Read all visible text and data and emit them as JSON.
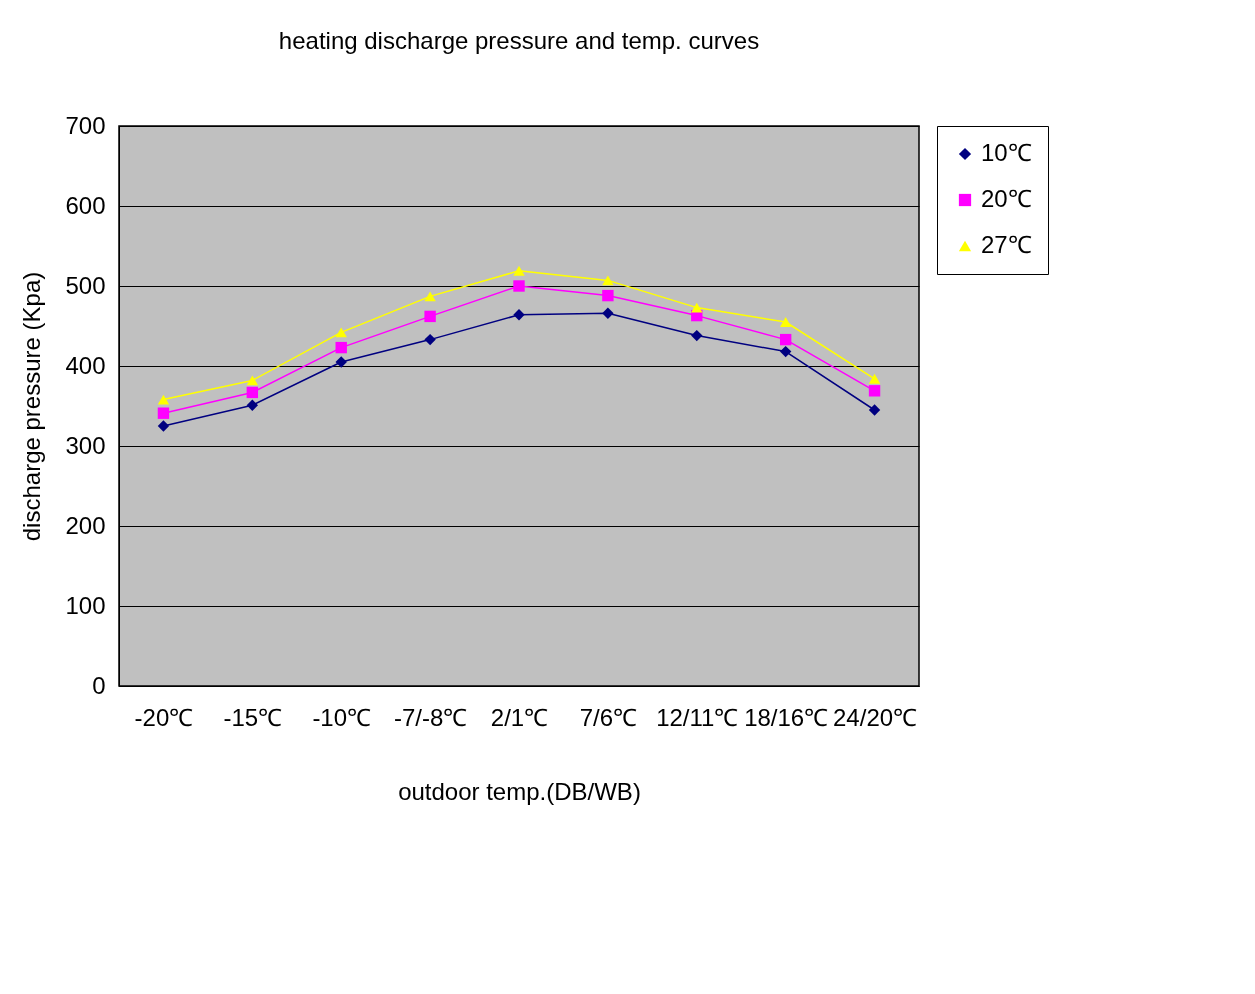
{
  "chart_data": {
    "type": "line",
    "title": "heating discharge pressure and temp. curves",
    "xlabel": "outdoor temp.(DB/WB)",
    "ylabel": "discharge pressure (Kpa)",
    "categories": [
      "-20℃",
      "-15℃",
      "-10℃",
      "-7/-8℃",
      "2/1℃",
      "7/6℃",
      "12/11℃",
      "18/16℃",
      "24/20℃"
    ],
    "series": [
      {
        "name": "10℃",
        "color": "#000080",
        "marker": "diamond",
        "values": [
          325,
          351,
          405,
          433,
          464,
          466,
          438,
          418,
          345
        ]
      },
      {
        "name": "20℃",
        "color": "#ff00ff",
        "marker": "square",
        "values": [
          341,
          367,
          423,
          462,
          500,
          488,
          463,
          433,
          369
        ]
      },
      {
        "name": "27℃",
        "color": "#ffff00",
        "marker": "triangle",
        "values": [
          358,
          382,
          442,
          487,
          519,
          507,
          473,
          455,
          384
        ]
      }
    ],
    "ylim": [
      0,
      700
    ],
    "yticks": [
      0,
      100,
      200,
      300,
      400,
      500,
      600,
      700
    ],
    "grid": "y",
    "legend": "right",
    "line_style": "solid"
  }
}
